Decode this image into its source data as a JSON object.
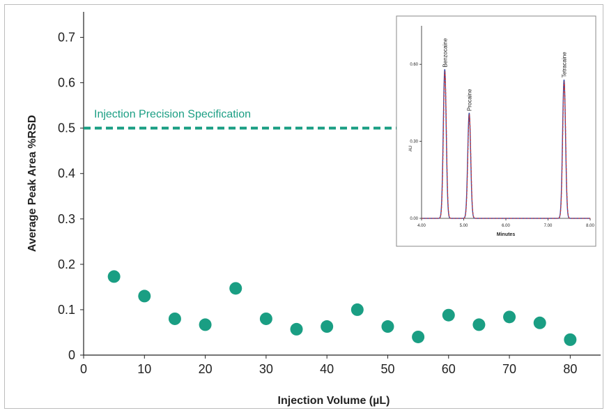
{
  "colors": {
    "marker": "#1a9e83",
    "spec_line": "#1a9e83",
    "axis": "#222222",
    "inset_trace_blue": "#3a4aa0",
    "inset_trace_red": "#d0312d"
  },
  "chart_data": [
    {
      "type": "scatter",
      "xlabel": "Injection Volume (µL)",
      "ylabel": "Average Peak Area %RSD",
      "xlim": [
        0,
        85
      ],
      "ylim": [
        0,
        0.75
      ],
      "x_ticks": [
        "0",
        "10",
        "20",
        "30",
        "40",
        "50",
        "60",
        "70",
        "80"
      ],
      "y_ticks": [
        "0",
        "0.1",
        "0.2",
        "0.3",
        "0.4",
        "0.5",
        "0.6",
        "0.7"
      ],
      "x": [
        5,
        10,
        15,
        20,
        25,
        30,
        35,
        40,
        45,
        50,
        55,
        60,
        65,
        70,
        75,
        80
      ],
      "values": [
        0.173,
        0.13,
        0.08,
        0.067,
        0.147,
        0.08,
        0.057,
        0.063,
        0.1,
        0.063,
        0.04,
        0.088,
        0.067,
        0.084,
        0.071,
        0.034
      ],
      "grid": false,
      "reference_line": {
        "y": 0.5,
        "label": "Injection Precision Specification"
      }
    },
    {
      "type": "line",
      "xlabel": "Minutes",
      "ylabel": "AU",
      "xlim": [
        4.0,
        8.0
      ],
      "ylim": [
        0.0,
        0.75
      ],
      "x_ticks": [
        "4.00",
        "5.00",
        "6.00",
        "7.00",
        "8.00"
      ],
      "y_ticks": [
        "0.00",
        "0.30",
        "0.60"
      ],
      "peaks": [
        {
          "name": "Benzocaine",
          "time": 4.55,
          "height": 0.58
        },
        {
          "name": "Procaine",
          "time": 5.13,
          "height": 0.41
        },
        {
          "name": "Tetracaine",
          "time": 7.38,
          "height": 0.54
        }
      ]
    }
  ]
}
